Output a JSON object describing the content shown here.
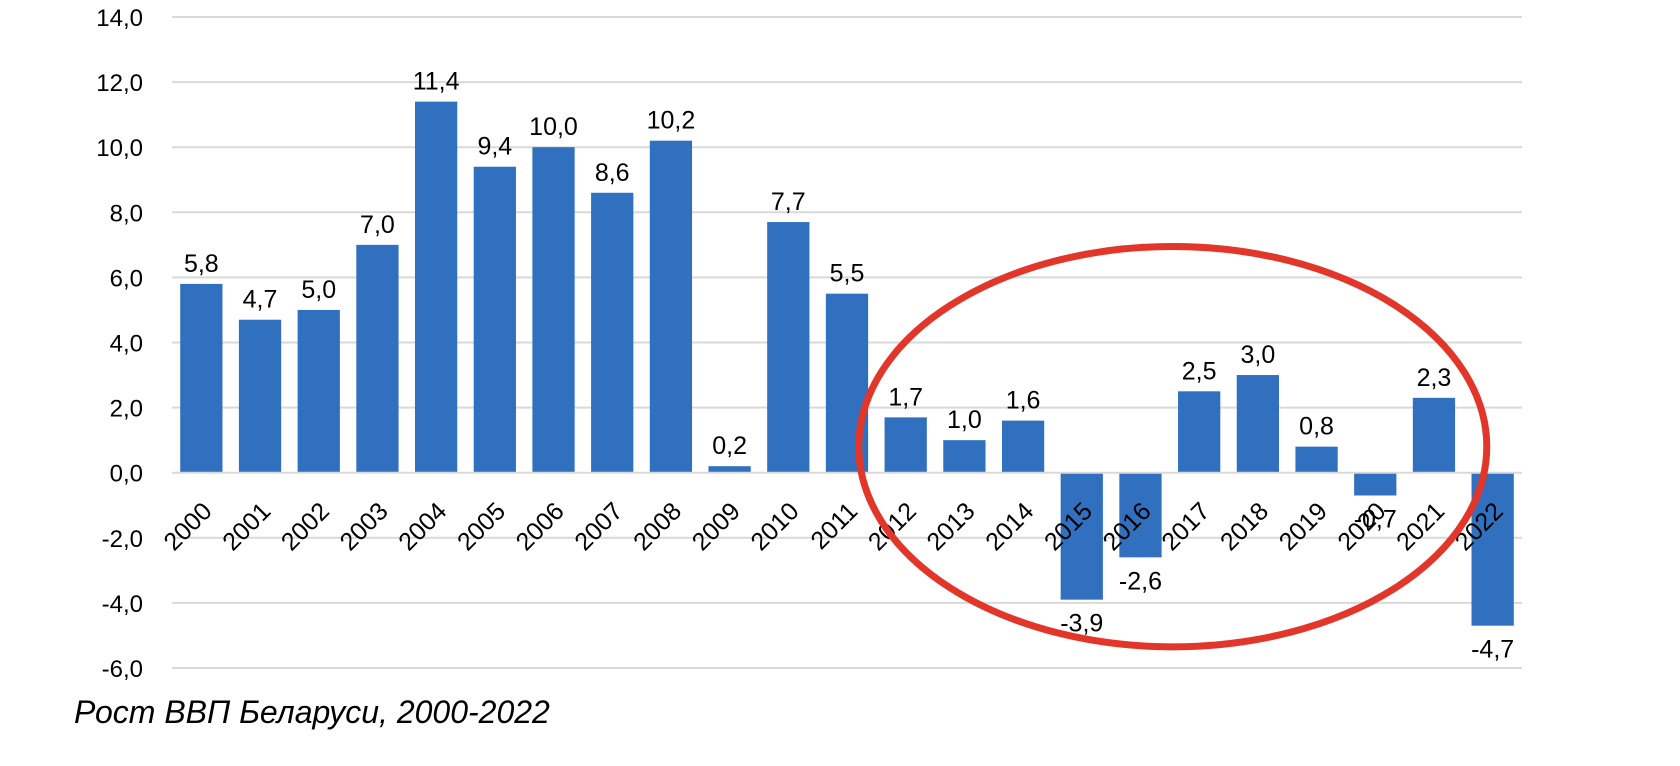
{
  "caption": "Рост ВВП Беларуси, 2000-2022",
  "colors": {
    "bar": "#3070BE",
    "grid": "#D9D9D9",
    "highlight": "#E3362A"
  },
  "chart_data": {
    "type": "bar",
    "title": "",
    "xlabel": "",
    "ylabel": "",
    "ylim": [
      -6,
      14
    ],
    "y_ticks": [
      14,
      12,
      10,
      8,
      6,
      4,
      2,
      0,
      -2,
      -4,
      -6
    ],
    "y_tick_labels": [
      "14,0",
      "12,0",
      "10,0",
      "8,0",
      "6,0",
      "4,0",
      "2,0",
      "0,0",
      "-2,0",
      "-4,0",
      "-6,0"
    ],
    "grid": true,
    "legend": "none",
    "categories": [
      "2000",
      "2001",
      "2002",
      "2003",
      "2004",
      "2005",
      "2006",
      "2007",
      "2008",
      "2009",
      "2010",
      "2011",
      "2012",
      "2013",
      "2014",
      "2015",
      "2016",
      "2017",
      "2018",
      "2019",
      "2020",
      "2021",
      "2022"
    ],
    "values": [
      5.8,
      4.7,
      5.0,
      7.0,
      11.4,
      9.4,
      10.0,
      8.6,
      10.2,
      0.2,
      7.7,
      5.5,
      1.7,
      1.0,
      1.6,
      -3.9,
      -2.6,
      2.5,
      3.0,
      0.8,
      -0.7,
      2.3,
      -4.7
    ],
    "data_labels": [
      "5,8",
      "4,7",
      "5,0",
      "7,0",
      "11,4",
      "9,4",
      "10,0",
      "8,6",
      "10,2",
      "0,2",
      "7,7",
      "5,5",
      "1,7",
      "1,0",
      "1,6",
      "-3,9",
      "-2,6",
      "2,5",
      "3,0",
      "0,8",
      "-0,7",
      "2,3",
      "-4,7"
    ],
    "annotations": [
      {
        "type": "ellipse",
        "color": "#E3362A",
        "encloses_categories": [
          "2012",
          "2013",
          "2014",
          "2015",
          "2016",
          "2017",
          "2018",
          "2019",
          "2020",
          "2021"
        ]
      }
    ]
  }
}
